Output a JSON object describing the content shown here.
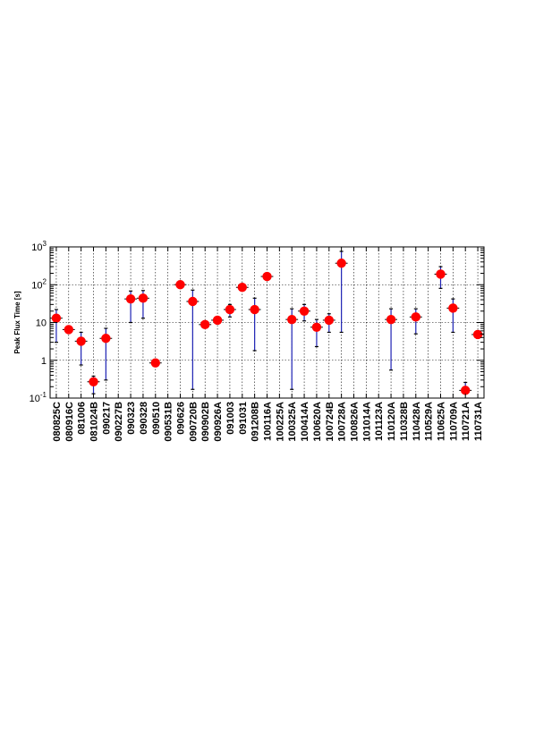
{
  "chart_data": {
    "type": "scatter",
    "title": "",
    "xlabel": "",
    "ylabel": "Peak Flux Time [s]",
    "yscale": "log",
    "ylim": [
      0.1,
      1000
    ],
    "yticks": [
      {
        "value": 0.1,
        "base": "10",
        "exp": "-1"
      },
      {
        "value": 1,
        "base": "1",
        "exp": ""
      },
      {
        "value": 10,
        "base": "10",
        "exp": ""
      },
      {
        "value": 100,
        "base": "10",
        "exp": "2"
      },
      {
        "value": 1000,
        "base": "10",
        "exp": "3"
      }
    ],
    "grid": true,
    "marker_color": "#ff0000",
    "errorbar_color": "#1e22b4",
    "categories": [
      "080825C",
      "080916C",
      "081006",
      "081024B",
      "090217",
      "090227B",
      "090323",
      "090328",
      "090510",
      "090531B",
      "090626",
      "090720B",
      "090902B",
      "090926A",
      "091003",
      "091031",
      "091208B",
      "100116A",
      "100225A",
      "100325A",
      "100414A",
      "100620A",
      "100724B",
      "100728A",
      "100826A",
      "101014A",
      "101123A",
      "110120A",
      "110328B",
      "110428A",
      "110529A",
      "110625A",
      "110709A",
      "110721A",
      "110731A"
    ],
    "points": [
      {
        "label": "080825C",
        "y": 13,
        "ylo": 3,
        "yhi": 22
      },
      {
        "label": "080916C",
        "y": 6.5,
        "ylo": 6.5,
        "yhi": 6.5
      },
      {
        "label": "081006",
        "y": 3.2,
        "ylo": 0.75,
        "yhi": 5.5
      },
      {
        "label": "081024B",
        "y": 0.27,
        "ylo": 0.13,
        "yhi": 0.38
      },
      {
        "label": "090217",
        "y": 3.8,
        "ylo": 0.3,
        "yhi": 7
      },
      {
        "label": "090323",
        "y": 42,
        "ylo": 10,
        "yhi": 68
      },
      {
        "label": "090328",
        "y": 44,
        "ylo": 13,
        "yhi": 70
      },
      {
        "label": "090510",
        "y": 0.85,
        "ylo": 0.85,
        "yhi": 0.85
      },
      {
        "label": "090626",
        "y": 100,
        "ylo": 82,
        "yhi": 118
      },
      {
        "label": "090720B",
        "y": 36,
        "ylo": 0.17,
        "yhi": 72
      },
      {
        "label": "090902B",
        "y": 8.8,
        "ylo": 8.8,
        "yhi": 8.8
      },
      {
        "label": "090926A",
        "y": 11.5,
        "ylo": 11.5,
        "yhi": 11.5
      },
      {
        "label": "091003",
        "y": 22,
        "ylo": 14,
        "yhi": 30
      },
      {
        "label": "091031",
        "y": 85,
        "ylo": 85,
        "yhi": 85
      },
      {
        "label": "091208B",
        "y": 22,
        "ylo": 1.8,
        "yhi": 44
      },
      {
        "label": "100116A",
        "y": 165,
        "ylo": 165,
        "yhi": 165
      },
      {
        "label": "100325A",
        "y": 12,
        "ylo": 0.17,
        "yhi": 23
      },
      {
        "label": "100414A",
        "y": 20,
        "ylo": 11,
        "yhi": 30
      },
      {
        "label": "100620A",
        "y": 7.5,
        "ylo": 2.3,
        "yhi": 12
      },
      {
        "label": "100724B",
        "y": 11.5,
        "ylo": 5.5,
        "yhi": 17
      },
      {
        "label": "100728A",
        "y": 370,
        "ylo": 5.5,
        "yhi": 760
      },
      {
        "label": "110120A",
        "y": 12,
        "ylo": 0.55,
        "yhi": 23
      },
      {
        "label": "110428A",
        "y": 14,
        "ylo": 5,
        "yhi": 23
      },
      {
        "label": "110625A",
        "y": 190,
        "ylo": 80,
        "yhi": 300
      },
      {
        "label": "110709A",
        "y": 24,
        "ylo": 5.5,
        "yhi": 42
      },
      {
        "label": "110721A",
        "y": 0.16,
        "ylo": 0.16,
        "yhi": 0.26
      },
      {
        "label": "110731A",
        "y": 4.8,
        "ylo": 4.8,
        "yhi": 4.8
      }
    ]
  }
}
